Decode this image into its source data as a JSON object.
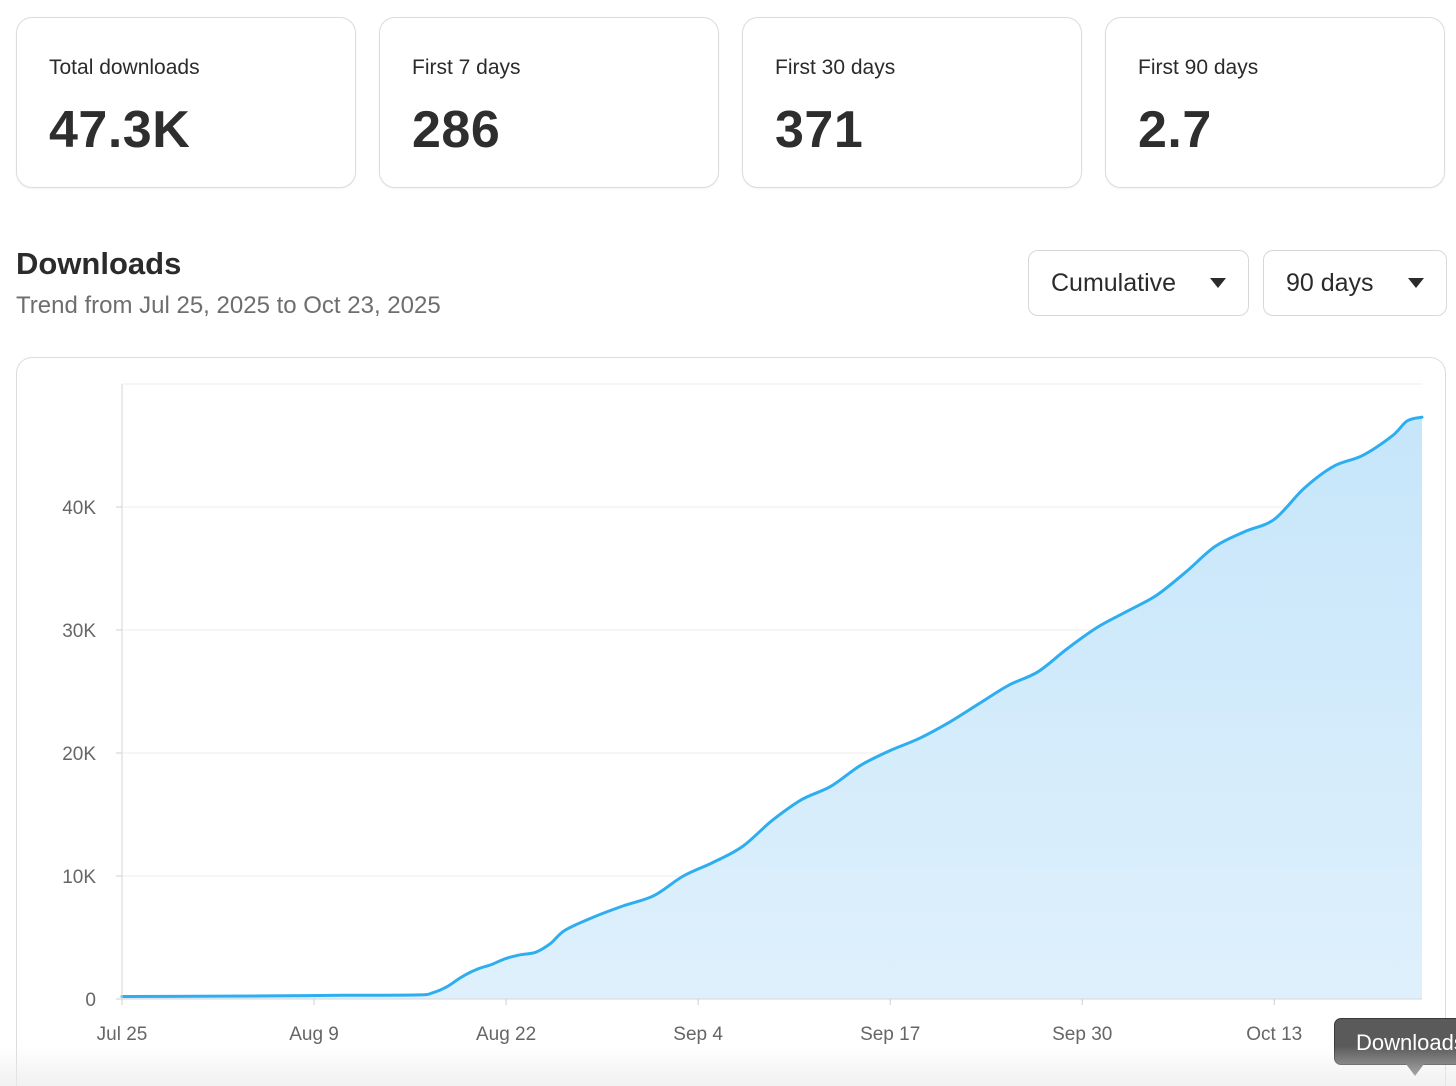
{
  "stats": [
    {
      "label": "Total downloads",
      "value": "47.3K"
    },
    {
      "label": "First 7 days",
      "value": "286"
    },
    {
      "label": "First 30 days",
      "value": "371"
    },
    {
      "label": "First 90 days",
      "value": "2.7"
    }
  ],
  "downloads": {
    "title": "Downloads",
    "subtitle": "Trend from Jul 25, 2025 to Oct 23, 2025",
    "mode_dropdown": {
      "selected": "Cumulative"
    },
    "range_dropdown": {
      "selected": "90 days"
    },
    "tooltip": "Downloads"
  },
  "chart_data": {
    "type": "area",
    "title": "",
    "xlabel": "",
    "ylabel": "",
    "x_tick_labels": [
      "Jul 25",
      "Aug 9",
      "Aug 22",
      "Sep 4",
      "Sep 17",
      "Sep 30",
      "Oct 13"
    ],
    "y_tick_labels": [
      "0",
      "10K",
      "20K",
      "30K",
      "40K"
    ],
    "y_ticks": [
      0,
      10000,
      20000,
      30000,
      40000
    ],
    "ylim": [
      0,
      50000
    ],
    "xlim": [
      "2025-07-25",
      "2025-10-21"
    ],
    "grid": true,
    "line_color": "#2eaef0",
    "fill_color": "#c6e6fa",
    "series": [
      {
        "x": [
          "2025-07-25",
          "2025-07-30",
          "2025-08-04",
          "2025-08-09",
          "2025-08-14",
          "2025-08-15",
          "2025-08-16",
          "2025-08-17",
          "2025-08-18",
          "2025-08-19",
          "2025-08-20",
          "2025-08-21",
          "2025-08-22",
          "2025-08-23",
          "2025-08-24",
          "2025-08-26",
          "2025-08-28",
          "2025-08-30",
          "2025-09-01",
          "2025-09-03",
          "2025-09-05",
          "2025-09-07",
          "2025-09-09",
          "2025-09-11",
          "2025-09-13",
          "2025-09-15",
          "2025-09-17",
          "2025-09-19",
          "2025-09-21",
          "2025-09-23",
          "2025-09-25",
          "2025-09-27",
          "2025-09-29",
          "2025-10-01",
          "2025-10-03",
          "2025-10-05",
          "2025-10-07",
          "2025-10-09",
          "2025-10-11",
          "2025-10-13",
          "2025-10-15",
          "2025-10-17",
          "2025-10-19",
          "2025-10-20",
          "2025-10-21"
        ],
        "y": [
          200,
          220,
          250,
          300,
          330,
          500,
          1000,
          1800,
          2400,
          2800,
          3300,
          3600,
          3800,
          4500,
          5600,
          6700,
          7600,
          8400,
          10000,
          11100,
          12400,
          14500,
          16200,
          17300,
          19000,
          20200,
          21200,
          22500,
          24000,
          25500,
          26600,
          28500,
          30200,
          31500,
          32800,
          34700,
          36800,
          38000,
          39000,
          41500,
          43300,
          44200,
          45800,
          47000,
          47300
        ]
      }
    ]
  }
}
